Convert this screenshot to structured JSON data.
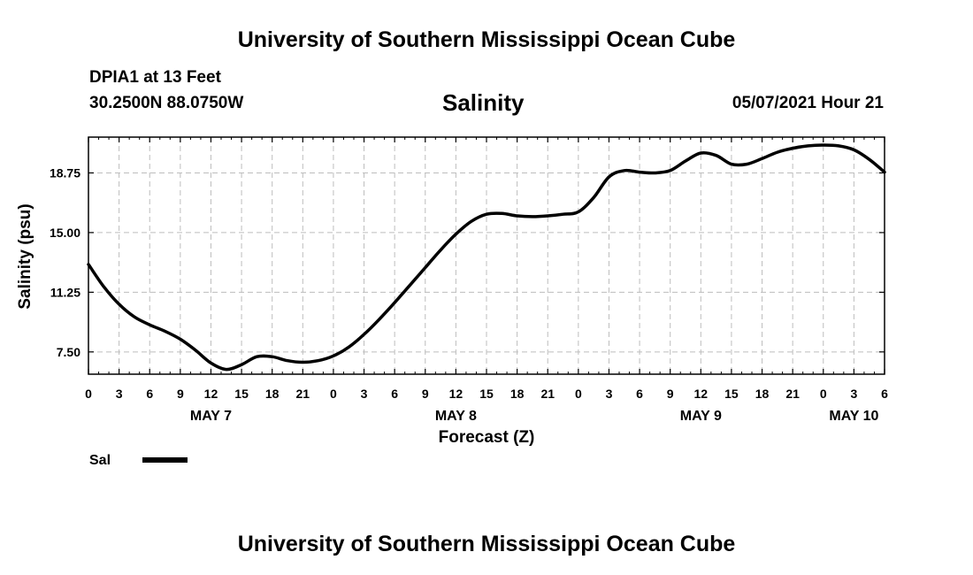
{
  "header": {
    "title": "University of Southern Mississippi Ocean Cube",
    "station": "DPIA1 at 13 Feet",
    "coords": "30.2500N  88.0750W",
    "chart_title": "Salinity",
    "timestamp": "05/07/2021 Hour 21"
  },
  "footer": {
    "title": "University of Southern Mississippi Ocean Cube"
  },
  "chart_data": {
    "type": "line",
    "title": "Salinity",
    "xlabel": "Forecast (Z)",
    "ylabel": "Salinity (psu)",
    "x_unit": "forecast hour from 0Z May 7",
    "xlim": [
      0,
      78
    ],
    "ylim": [
      6.1,
      21.0
    ],
    "yticks": [
      7.5,
      11.25,
      15.0,
      18.75
    ],
    "ytick_labels": [
      "7.50",
      "11.25",
      "15.00",
      "18.75"
    ],
    "xticks": [
      0,
      3,
      6,
      9,
      12,
      15,
      18,
      21,
      24,
      27,
      30,
      33,
      36,
      39,
      42,
      45,
      48,
      51,
      54,
      57,
      60,
      63,
      66,
      69,
      72,
      75,
      78
    ],
    "xtick_labels": [
      "0",
      "3",
      "6",
      "9",
      "12",
      "15",
      "18",
      "21",
      "0",
      "3",
      "6",
      "9",
      "12",
      "15",
      "18",
      "21",
      "0",
      "3",
      "6",
      "9",
      "12",
      "15",
      "18",
      "21",
      "0",
      "3",
      "6"
    ],
    "date_labels": [
      {
        "x": 12,
        "label": "MAY 7"
      },
      {
        "x": 36,
        "label": "MAY 8"
      },
      {
        "x": 60,
        "label": "MAY 9"
      },
      {
        "x": 75,
        "label": "MAY 10"
      }
    ],
    "grid": true,
    "legend_position": "bottom-left",
    "series": [
      {
        "name": "Sal",
        "color": "#000000",
        "x": [
          0,
          1.5,
          3,
          4.5,
          6,
          7.5,
          9,
          10.5,
          12,
          13.5,
          15,
          16.5,
          18,
          19.5,
          21,
          22.5,
          24,
          25.5,
          27,
          28.5,
          30,
          31.5,
          33,
          34.5,
          36,
          37.5,
          39,
          40.5,
          42,
          43.5,
          45,
          46.5,
          48,
          49.5,
          51,
          52.5,
          54,
          55.5,
          57,
          58.5,
          60,
          61.5,
          63,
          64.5,
          66,
          67.5,
          69,
          70.5,
          72,
          73.5,
          75,
          76.5,
          78
        ],
        "values": [
          13.0,
          11.6,
          10.5,
          9.7,
          9.2,
          8.8,
          8.3,
          7.6,
          6.8,
          6.4,
          6.7,
          7.2,
          7.2,
          6.95,
          6.85,
          6.95,
          7.25,
          7.8,
          8.6,
          9.55,
          10.6,
          11.7,
          12.8,
          13.9,
          14.9,
          15.7,
          16.15,
          16.2,
          16.05,
          16.0,
          16.05,
          16.15,
          16.3,
          17.2,
          18.5,
          18.9,
          18.8,
          18.75,
          18.9,
          19.5,
          20.0,
          19.85,
          19.3,
          19.3,
          19.65,
          20.05,
          20.3,
          20.45,
          20.5,
          20.45,
          20.2,
          19.6,
          18.8
        ]
      }
    ]
  }
}
